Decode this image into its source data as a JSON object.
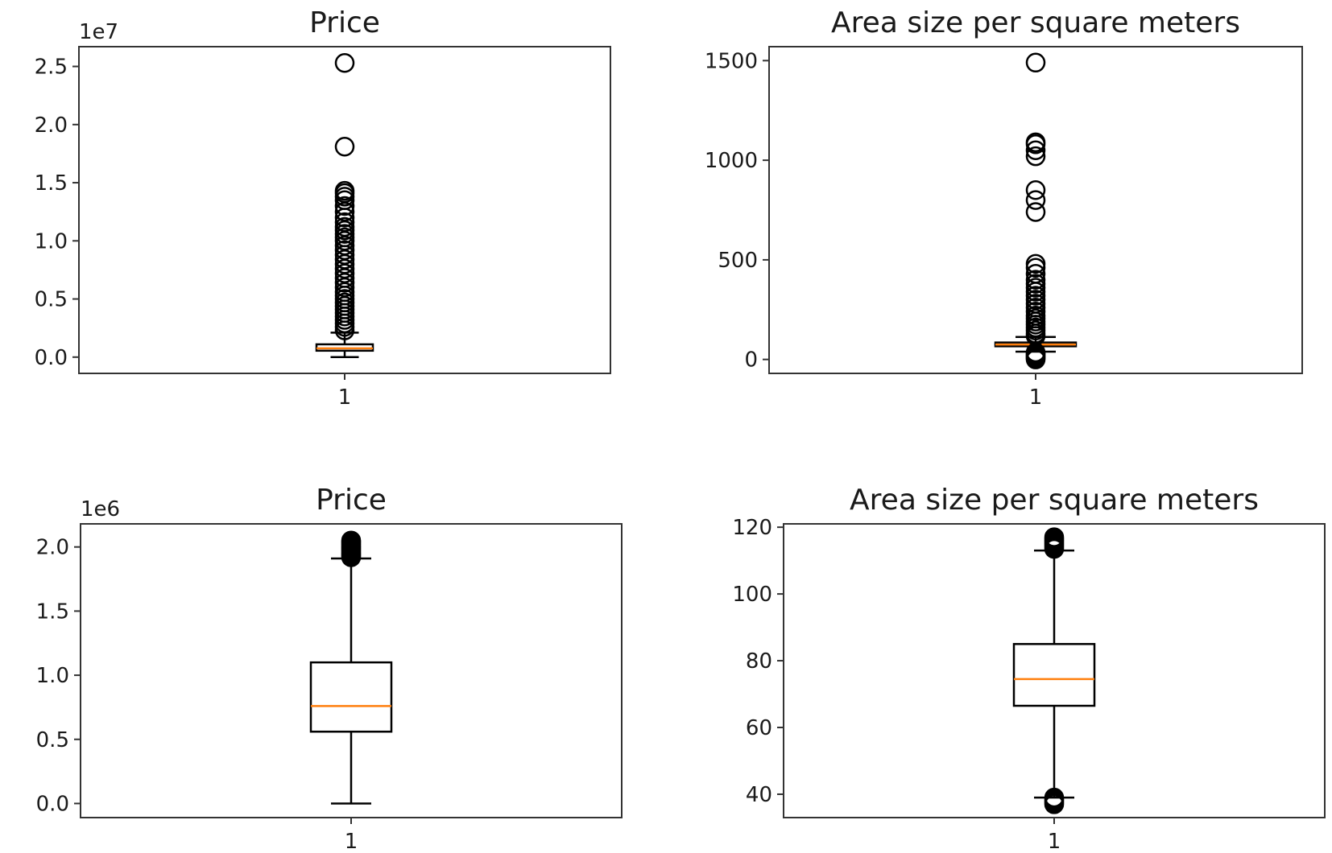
{
  "chart_data": [
    {
      "type": "box",
      "title": "Price",
      "offset_label": "1e7",
      "categories": [
        "1"
      ],
      "yticks": [
        0.0,
        0.5,
        1.0,
        1.5,
        2.0,
        2.5
      ],
      "ytick_labels": [
        "0.0",
        "0.5",
        "1.0",
        "1.5",
        "2.0",
        "2.5"
      ],
      "ylim": [
        -0.14,
        2.67
      ],
      "box": {
        "whislo": 0.0,
        "q1": 0.055,
        "med": 0.075,
        "q3": 0.11,
        "whishi": 0.21
      },
      "fliers": [
        0.23,
        0.26,
        0.29,
        0.32,
        0.35,
        0.38,
        0.41,
        0.44,
        0.47,
        0.5,
        0.53,
        0.56,
        0.6,
        0.64,
        0.68,
        0.72,
        0.76,
        0.8,
        0.84,
        0.88,
        0.92,
        0.96,
        1.0,
        1.03,
        1.06,
        1.09,
        1.12,
        1.16,
        1.2,
        1.25,
        1.3,
        1.35,
        1.38,
        1.41,
        1.43,
        1.81,
        2.53
      ]
    },
    {
      "type": "box",
      "title": "Area size per square meters",
      "offset_label": "",
      "categories": [
        "1"
      ],
      "yticks": [
        0,
        500,
        1000,
        1500
      ],
      "ytick_labels": [
        "0",
        "500",
        "1000",
        "1500"
      ],
      "ylim": [
        -70,
        1570
      ],
      "box": {
        "whislo": 39,
        "q1": 66,
        "med": 75,
        "q3": 85,
        "whishi": 113
      },
      "fliers": [
        0,
        5,
        10,
        15,
        20,
        25,
        30,
        35,
        118,
        130,
        145,
        160,
        175,
        190,
        205,
        220,
        240,
        260,
        280,
        300,
        320,
        340,
        360,
        380,
        400,
        430,
        460,
        480,
        740,
        800,
        850,
        1020,
        1050,
        1080,
        1090,
        1490
      ]
    },
    {
      "type": "box",
      "title": "Price",
      "offset_label": "1e6",
      "categories": [
        "1"
      ],
      "yticks": [
        0.0,
        0.5,
        1.0,
        1.5,
        2.0
      ],
      "ytick_labels": [
        "0.0",
        "0.5",
        "1.0",
        "1.5",
        "2.0"
      ],
      "ylim": [
        -0.11,
        2.18
      ],
      "box": {
        "whislo": 0.0,
        "q1": 0.56,
        "med": 0.76,
        "q3": 1.1,
        "whishi": 1.91
      },
      "fliers": [
        1.92,
        1.93,
        1.94,
        1.95,
        1.96,
        1.97,
        1.98,
        1.99,
        2.0,
        2.01,
        2.02,
        2.03,
        2.04,
        2.05
      ]
    },
    {
      "type": "box",
      "title": "Area size per square meters",
      "offset_label": "",
      "categories": [
        "1"
      ],
      "yticks": [
        40,
        60,
        80,
        100,
        120
      ],
      "ytick_labels": [
        "40",
        "60",
        "80",
        "100",
        "120"
      ],
      "ylim": [
        33,
        121
      ],
      "box": {
        "whislo": 39,
        "q1": 66.5,
        "med": 74.5,
        "q3": 85,
        "whishi": 113
      },
      "fliers": [
        37,
        37.5,
        38,
        38.5,
        39,
        113.5,
        114,
        114.5,
        115,
        115.5,
        116,
        116.5,
        117
      ]
    }
  ]
}
